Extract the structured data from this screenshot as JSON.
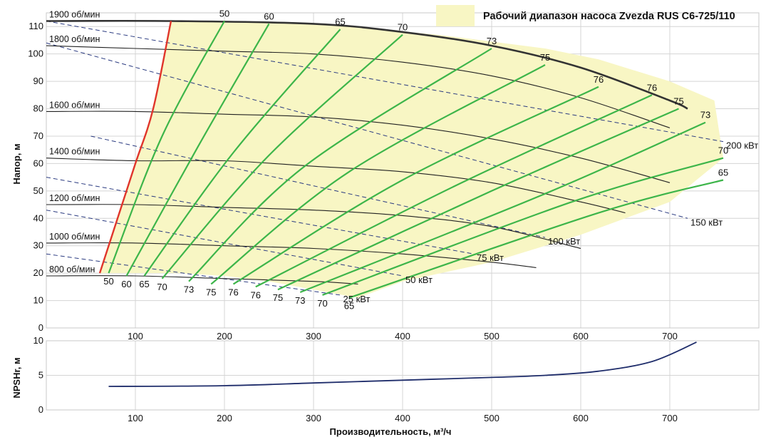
{
  "legend": {
    "label": "Рабочий диапазон насоса Zvezda RUS C6-725/110",
    "fill_color": "#f8f6c4"
  },
  "chart_data": [
    {
      "type": "line",
      "title": "",
      "xlabel": "",
      "ylabel": "Напор, м",
      "xlim": [
        0,
        800
      ],
      "ylim": [
        0,
        115
      ],
      "x_ticks": [
        "100",
        "200",
        "300",
        "400",
        "500",
        "600",
        "700"
      ],
      "y_ticks": [
        "0",
        "10",
        "20",
        "30",
        "40",
        "50",
        "60",
        "70",
        "80",
        "90",
        "100",
        "110"
      ],
      "grid": true,
      "operating_range_polygon": [
        [
          140,
          112
        ],
        [
          300,
          111
        ],
        [
          440,
          107
        ],
        [
          560,
          102
        ],
        [
          620,
          98
        ],
        [
          700,
          90
        ],
        [
          750,
          83
        ],
        [
          760,
          62
        ],
        [
          700,
          46
        ],
        [
          600,
          34
        ],
        [
          500,
          24
        ],
        [
          400,
          17
        ],
        [
          350,
          11
        ],
        [
          300,
          14
        ],
        [
          250,
          17
        ],
        [
          200,
          19
        ],
        [
          150,
          20
        ],
        [
          100,
          20
        ],
        [
          60,
          20
        ],
        [
          80,
          40
        ],
        [
          100,
          60
        ],
        [
          120,
          80
        ],
        [
          140,
          112
        ]
      ],
      "speed_curves": [
        {
          "label": "1900 об/мин",
          "points": [
            [
              0,
              112
            ],
            [
              140,
              112
            ],
            [
              300,
              111
            ],
            [
              400,
              108
            ],
            [
              500,
              103
            ],
            [
              600,
              95
            ],
            [
              700,
              83
            ],
            [
              720,
              80
            ]
          ],
          "bold": true
        },
        {
          "label": "1800 об/мин",
          "points": [
            [
              0,
              103
            ],
            [
              100,
              102
            ],
            [
              200,
              101
            ],
            [
              300,
              100
            ],
            [
              400,
              97
            ],
            [
              500,
              92
            ],
            [
              600,
              84
            ],
            [
              700,
              73
            ]
          ]
        },
        {
          "label": "1600 об/мин",
          "points": [
            [
              0,
              79
            ],
            [
              100,
              79
            ],
            [
              200,
              78
            ],
            [
              300,
              77
            ],
            [
              400,
              74
            ],
            [
              500,
              69
            ],
            [
              600,
              62
            ],
            [
              700,
              53
            ]
          ]
        },
        {
          "label": "1400 об/мин",
          "points": [
            [
              0,
              62
            ],
            [
              100,
              61
            ],
            [
              200,
              61
            ],
            [
              300,
              59
            ],
            [
              400,
              57
            ],
            [
              500,
              53
            ],
            [
              600,
              46
            ],
            [
              650,
              42
            ]
          ]
        },
        {
          "label": "1200 об/мин",
          "points": [
            [
              0,
              45
            ],
            [
              100,
              45
            ],
            [
              200,
              44
            ],
            [
              300,
              43
            ],
            [
              400,
              41
            ],
            [
              500,
              37
            ],
            [
              600,
              29
            ]
          ]
        },
        {
          "label": "1000 об/мин",
          "points": [
            [
              0,
              31
            ],
            [
              100,
              31
            ],
            [
              200,
              30
            ],
            [
              300,
              29
            ],
            [
              400,
              27
            ],
            [
              500,
              24
            ],
            [
              550,
              22
            ]
          ]
        },
        {
          "label": "800 об/мин",
          "points": [
            [
              0,
              19
            ],
            [
              100,
              19
            ],
            [
              200,
              18
            ],
            [
              300,
              17
            ],
            [
              350,
              16
            ]
          ]
        }
      ],
      "limit_curve_40": [
        [
          60,
          20
        ],
        [
          80,
          40
        ],
        [
          100,
          60
        ],
        [
          120,
          80
        ],
        [
          140,
          112
        ]
      ],
      "efficiency_curves": [
        {
          "top_label": "50",
          "bottom_label": "50",
          "points": [
            [
              70,
              20
            ],
            [
              130,
              70
            ],
            [
              200,
              112
            ]
          ]
        },
        {
          "top_label": "60",
          "bottom_label": "60",
          "points": [
            [
              90,
              19
            ],
            [
              170,
              66
            ],
            [
              250,
              111
            ]
          ]
        },
        {
          "top_label": "65",
          "bottom_label": "65",
          "points": [
            [
              110,
              19
            ],
            [
              210,
              64
            ],
            [
              330,
              109
            ]
          ]
        },
        {
          "top_label": "70",
          "bottom_label": "70",
          "points": [
            [
              130,
              18
            ],
            [
              250,
              63
            ],
            [
              400,
              107
            ]
          ]
        },
        {
          "top_label": "73",
          "bottom_label": "73",
          "points": [
            [
              160,
              17
            ],
            [
              290,
              59
            ],
            [
              500,
              102
            ]
          ]
        },
        {
          "top_label": "75",
          "bottom_label": "75",
          "points": [
            [
              185,
              16
            ],
            [
              340,
              57
            ],
            [
              560,
              96
            ]
          ]
        },
        {
          "top_label": "76",
          "bottom_label": "76",
          "points": [
            [
              210,
              16
            ],
            [
              400,
              54
            ],
            [
              620,
              88
            ]
          ]
        },
        {
          "top_label": "76",
          "bottom_label": "76",
          "points": [
            [
              235,
              15
            ],
            [
              460,
              52
            ],
            [
              680,
              85
            ]
          ]
        },
        {
          "top_label": "75",
          "bottom_label": "75",
          "points": [
            [
              260,
              14
            ],
            [
              500,
              50
            ],
            [
              710,
              80
            ]
          ]
        },
        {
          "top_label": "73",
          "bottom_label": "73",
          "points": [
            [
              285,
              13
            ],
            [
              560,
              49
            ],
            [
              740,
              75
            ]
          ]
        },
        {
          "top_label": "70",
          "bottom_label": "70",
          "points": [
            [
              310,
              12
            ],
            [
              590,
              46
            ],
            [
              760,
              62
            ]
          ]
        },
        {
          "top_label": "65",
          "bottom_label": "65",
          "points": [
            [
              340,
              11
            ],
            [
              620,
              42
            ],
            [
              760,
              54
            ]
          ]
        }
      ],
      "power_lines": [
        {
          "label": "200 кВт",
          "points": [
            [
              0,
              112
            ],
            [
              760,
              68
            ]
          ]
        },
        {
          "label": "150 кВт",
          "points": [
            [
              0,
              104
            ],
            [
              720,
              40
            ]
          ]
        },
        {
          "label": "100 кВт",
          "points": [
            [
              50,
              70
            ],
            [
              560,
              33
            ]
          ]
        },
        {
          "label": "75 кВт",
          "points": [
            [
              0,
              55
            ],
            [
              480,
              27
            ]
          ]
        },
        {
          "label": "50 кВт",
          "points": [
            [
              0,
              43
            ],
            [
              400,
              19
            ]
          ]
        },
        {
          "label": "25 кВт",
          "points": [
            [
              0,
              27
            ],
            [
              330,
              12
            ]
          ]
        }
      ]
    },
    {
      "type": "line",
      "title": "",
      "xlabel": "Производительность, м³/ч",
      "ylabel": "NPSHr, м",
      "xlim": [
        0,
        800
      ],
      "ylim": [
        0,
        10
      ],
      "x_ticks": [
        "100",
        "200",
        "300",
        "400",
        "500",
        "600",
        "700"
      ],
      "y_ticks": [
        "0",
        "5",
        "10"
      ],
      "grid": true,
      "series": [
        {
          "points": [
            [
              70,
              3.4
            ],
            [
              200,
              3.5
            ],
            [
              300,
              3.9
            ],
            [
              400,
              4.3
            ],
            [
              500,
              4.7
            ],
            [
              560,
              5.0
            ],
            [
              620,
              5.6
            ],
            [
              680,
              7.0
            ],
            [
              730,
              9.8
            ]
          ]
        }
      ]
    }
  ]
}
